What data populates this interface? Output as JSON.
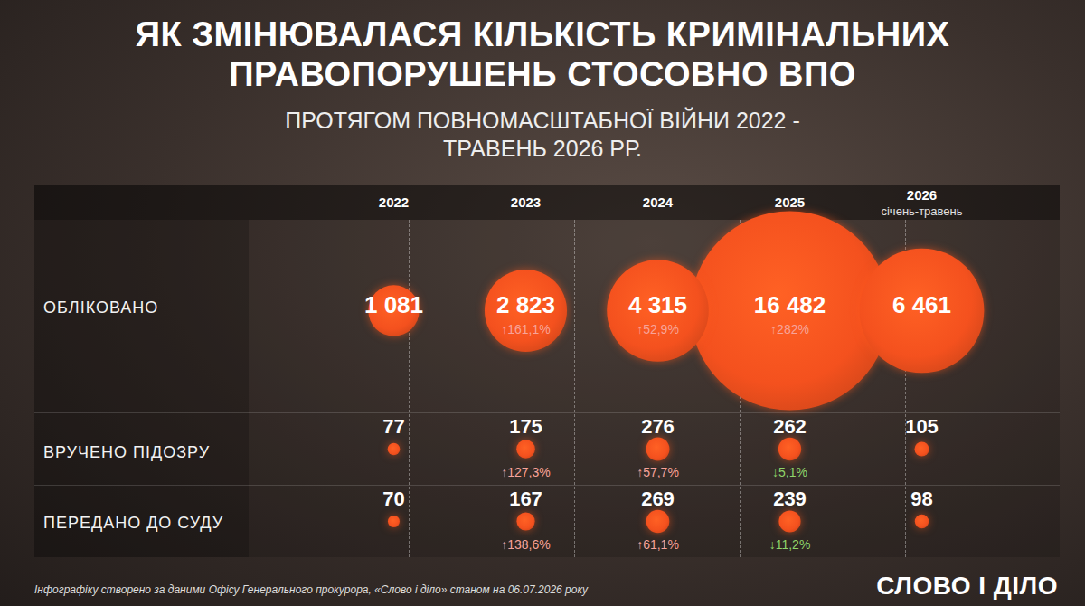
{
  "chart_data": {
    "type": "bubble",
    "title": "ЯК ЗМІНЮВАЛАСЯ КІЛЬКІСТЬ КРИМІНАЛЬНИХ ПРАВОПОРУШЕНЬ СТОСОВНО ВПО",
    "subtitle": "ПРОТЯГОМ ПОВНОМАСШТАБНОЇ ВІЙНИ 2022 - ТРАВЕНЬ 2026 РР.",
    "categories": [
      "2022",
      "2023",
      "2024",
      "2025",
      "2026 січень-травень"
    ],
    "series": [
      {
        "name": "ОБЛІКОВАНО",
        "color": "#f4511e",
        "values": [
          1081,
          2823,
          4315,
          16482,
          6461
        ],
        "value_labels": [
          "1 081",
          "2 823",
          "4 315",
          "16 482",
          "6 461"
        ],
        "change": [
          null,
          161.1,
          52.9,
          282,
          null
        ],
        "change_labels": [
          null,
          "↑161,1%",
          "↑52,9%",
          "↑282%",
          null
        ]
      },
      {
        "name": "ВРУЧЕНО ПІДОЗРУ",
        "color": "#f4511e",
        "values": [
          77,
          175,
          276,
          262,
          105
        ],
        "value_labels": [
          "77",
          "175",
          "276",
          "262",
          "105"
        ],
        "change": [
          null,
          127.3,
          57.7,
          -5.1,
          null
        ],
        "change_labels": [
          null,
          "↑127,3%",
          "↑57,7%",
          "↓5,1%",
          null
        ]
      },
      {
        "name": "ПЕРЕДАНО ДО СУДУ",
        "color": "#f4511e",
        "values": [
          70,
          167,
          269,
          239,
          98
        ],
        "value_labels": [
          "70",
          "167",
          "269",
          "239",
          "98"
        ],
        "change": [
          null,
          138.6,
          61.1,
          -11.2,
          null
        ],
        "change_labels": [
          null,
          "↑138,6%",
          "↑61,1%",
          "↓11,2%",
          null
        ]
      }
    ],
    "data_labels": true,
    "tick_labels": "x",
    "caption": "Інфографіку створено за даними Офісу Генерального прокурора, «Слово і діло»  станом на 06.07.2026 року",
    "logo": "СЛОВО І ДІЛО"
  }
}
